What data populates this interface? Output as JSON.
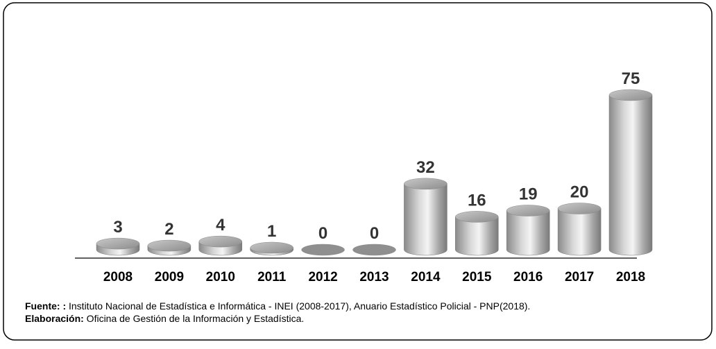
{
  "chart_data": {
    "type": "bar",
    "categories": [
      "2008",
      "2009",
      "2010",
      "2011",
      "2012",
      "2013",
      "2014",
      "2015",
      "2016",
      "2017",
      "2018"
    ],
    "values": [
      3,
      2,
      4,
      1,
      0,
      0,
      32,
      16,
      19,
      20,
      75
    ]
  },
  "footer": {
    "source_label": "Fuente: :",
    "source": " Instituto Nacional de Estadística e Informática - INEI (2008-2017), Anuario Estadístico Policial - PNP(2018).",
    "credit_label": "Elaboración:",
    "credit": " Oficina de Gestión de la Información y Estadística."
  }
}
